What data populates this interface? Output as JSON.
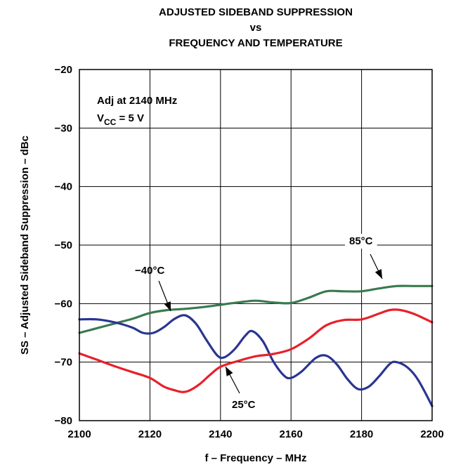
{
  "chart_data": {
    "type": "line",
    "title": [
      "ADJUSTED SIDEBAND SUPPRESSION",
      "vs",
      "FREQUENCY AND TEMPERATURE"
    ],
    "xlabel": "f – Frequency – MHz",
    "ylabel": "SS – Adjusted Sideband Suppression – dBc",
    "xlim": [
      2100,
      2200
    ],
    "ylim": [
      -80,
      -20
    ],
    "x_ticks": [
      "2100",
      "2120",
      "2140",
      "2160",
      "2180",
      "2200"
    ],
    "y_ticks": [
      "−20",
      "−30",
      "−40",
      "−50",
      "−60",
      "−70",
      "−80"
    ],
    "grid": true,
    "conditions": {
      "line1": "Adj at 2140 MHz",
      "line2_prefix": "V",
      "line2_sub": "CC",
      "line2_suffix": " = 5 V"
    },
    "series": [
      {
        "name": "85°C",
        "color": "#3a7a4f",
        "x": [
          2100,
          2105,
          2110,
          2115,
          2120,
          2125,
          2130,
          2135,
          2140,
          2145,
          2150,
          2155,
          2160,
          2165,
          2170,
          2175,
          2180,
          2185,
          2190,
          2195,
          2200
        ],
        "y": [
          -65.0,
          -64.2,
          -63.4,
          -62.6,
          -61.6,
          -61.1,
          -60.9,
          -60.6,
          -60.2,
          -59.8,
          -59.5,
          -59.8,
          -59.9,
          -59.0,
          -57.9,
          -57.9,
          -57.9,
          -57.4,
          -57.0,
          -57.0,
          -57.0
        ]
      },
      {
        "name": "−40°C",
        "color": "#2a3590",
        "x": [
          2100,
          2105,
          2110,
          2115,
          2118,
          2121,
          2124,
          2127,
          2130,
          2133,
          2136,
          2139,
          2141,
          2144,
          2147,
          2149,
          2152,
          2155,
          2158,
          2160,
          2163,
          2167,
          2170,
          2173,
          2176,
          2179,
          2182,
          2185,
          2188,
          2190,
          2193,
          2196,
          2200
        ],
        "y": [
          -62.7,
          -62.7,
          -63.2,
          -64.1,
          -65.0,
          -65.0,
          -64.0,
          -62.6,
          -62.0,
          -63.4,
          -66.2,
          -68.8,
          -69.2,
          -67.8,
          -65.5,
          -64.7,
          -66.4,
          -69.9,
          -72.3,
          -72.7,
          -71.6,
          -69.3,
          -68.9,
          -70.4,
          -72.9,
          -74.6,
          -74.2,
          -72.4,
          -70.3,
          -70.0,
          -70.9,
          -73.0,
          -77.5
        ]
      },
      {
        "name": "25°C",
        "color": "#e8202a",
        "x": [
          2100,
          2105,
          2110,
          2115,
          2120,
          2124,
          2127,
          2129,
          2131,
          2134,
          2137,
          2140,
          2145,
          2150,
          2155,
          2160,
          2165,
          2170,
          2175,
          2180,
          2185,
          2188,
          2191,
          2195,
          2200
        ],
        "y": [
          -68.5,
          -69.6,
          -70.7,
          -71.7,
          -72.7,
          -74.2,
          -74.8,
          -75.1,
          -74.9,
          -73.8,
          -72.2,
          -70.8,
          -69.8,
          -69.0,
          -68.6,
          -67.8,
          -66.0,
          -63.7,
          -62.8,
          -62.7,
          -61.7,
          -61.1,
          -61.1,
          -61.8,
          -63.2
        ]
      }
    ],
    "annotations": [
      {
        "label": "85°C",
        "series": "85°C"
      },
      {
        "label": "−40°C",
        "series": "−40°C"
      },
      {
        "label": "25°C",
        "series": "25°C"
      }
    ]
  }
}
